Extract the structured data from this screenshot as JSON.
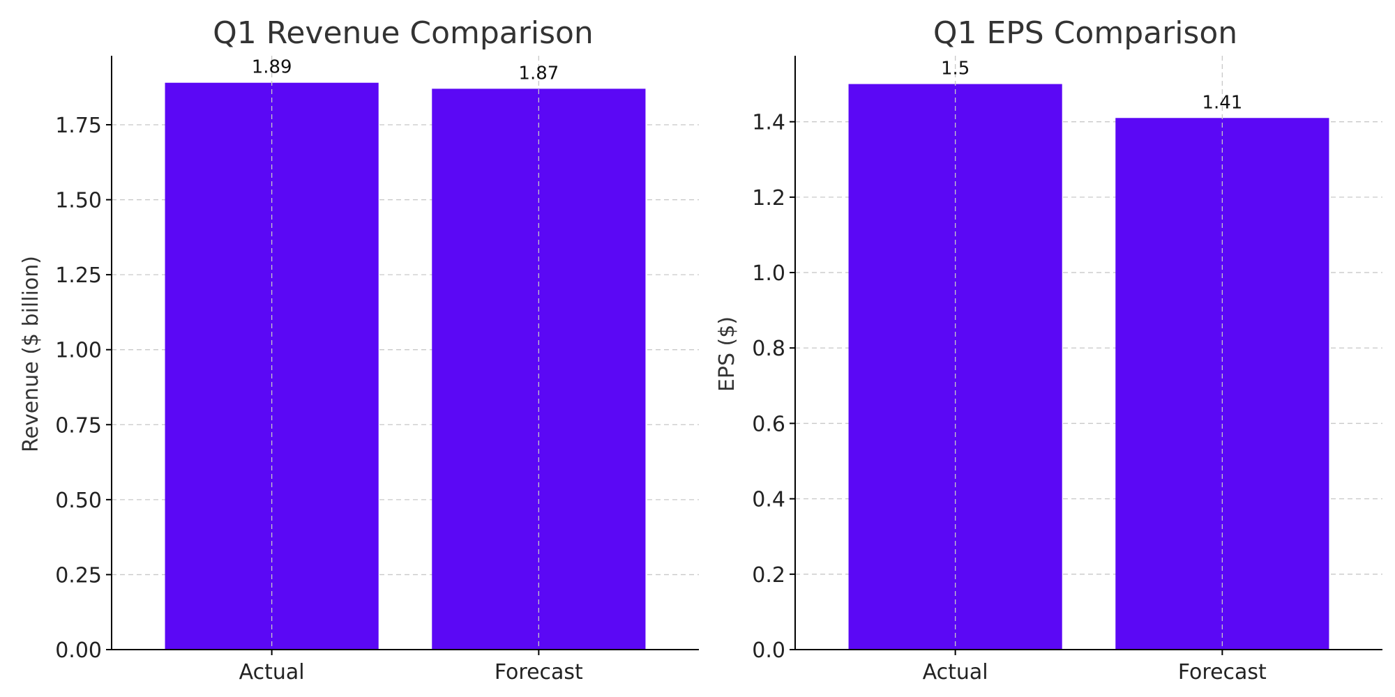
{
  "chart_data": [
    {
      "type": "bar",
      "title": "Q1 Revenue Comparison",
      "xlabel": "",
      "ylabel": "Revenue ($ billion)",
      "categories": [
        "Actual",
        "Forecast"
      ],
      "values": [
        1.89,
        1.87
      ],
      "value_labels": [
        "1.89",
        "1.87"
      ],
      "ylim": [
        0,
        1.98
      ],
      "yticks": [
        0,
        0.25,
        0.5,
        0.75,
        1.0,
        1.25,
        1.5,
        1.75
      ],
      "ytick_labels": [
        "0.00",
        "0.25",
        "0.50",
        "0.75",
        "1.00",
        "1.25",
        "1.50",
        "1.75"
      ],
      "grid": true,
      "bar_color": "#5b08f5"
    },
    {
      "type": "bar",
      "title": "Q1 EPS Comparison",
      "xlabel": "",
      "ylabel": "EPS ($)",
      "categories": [
        "Actual",
        "Forecast"
      ],
      "values": [
        1.5,
        1.41
      ],
      "value_labels": [
        "1.5",
        "1.41"
      ],
      "ylim": [
        0,
        1.575
      ],
      "yticks": [
        0,
        0.2,
        0.4,
        0.6,
        0.8,
        1.0,
        1.2,
        1.4
      ],
      "ytick_labels": [
        "0.0",
        "0.2",
        "0.4",
        "0.6",
        "0.8",
        "1.0",
        "1.2",
        "1.4"
      ],
      "grid": true,
      "bar_color": "#5b08f5"
    }
  ]
}
